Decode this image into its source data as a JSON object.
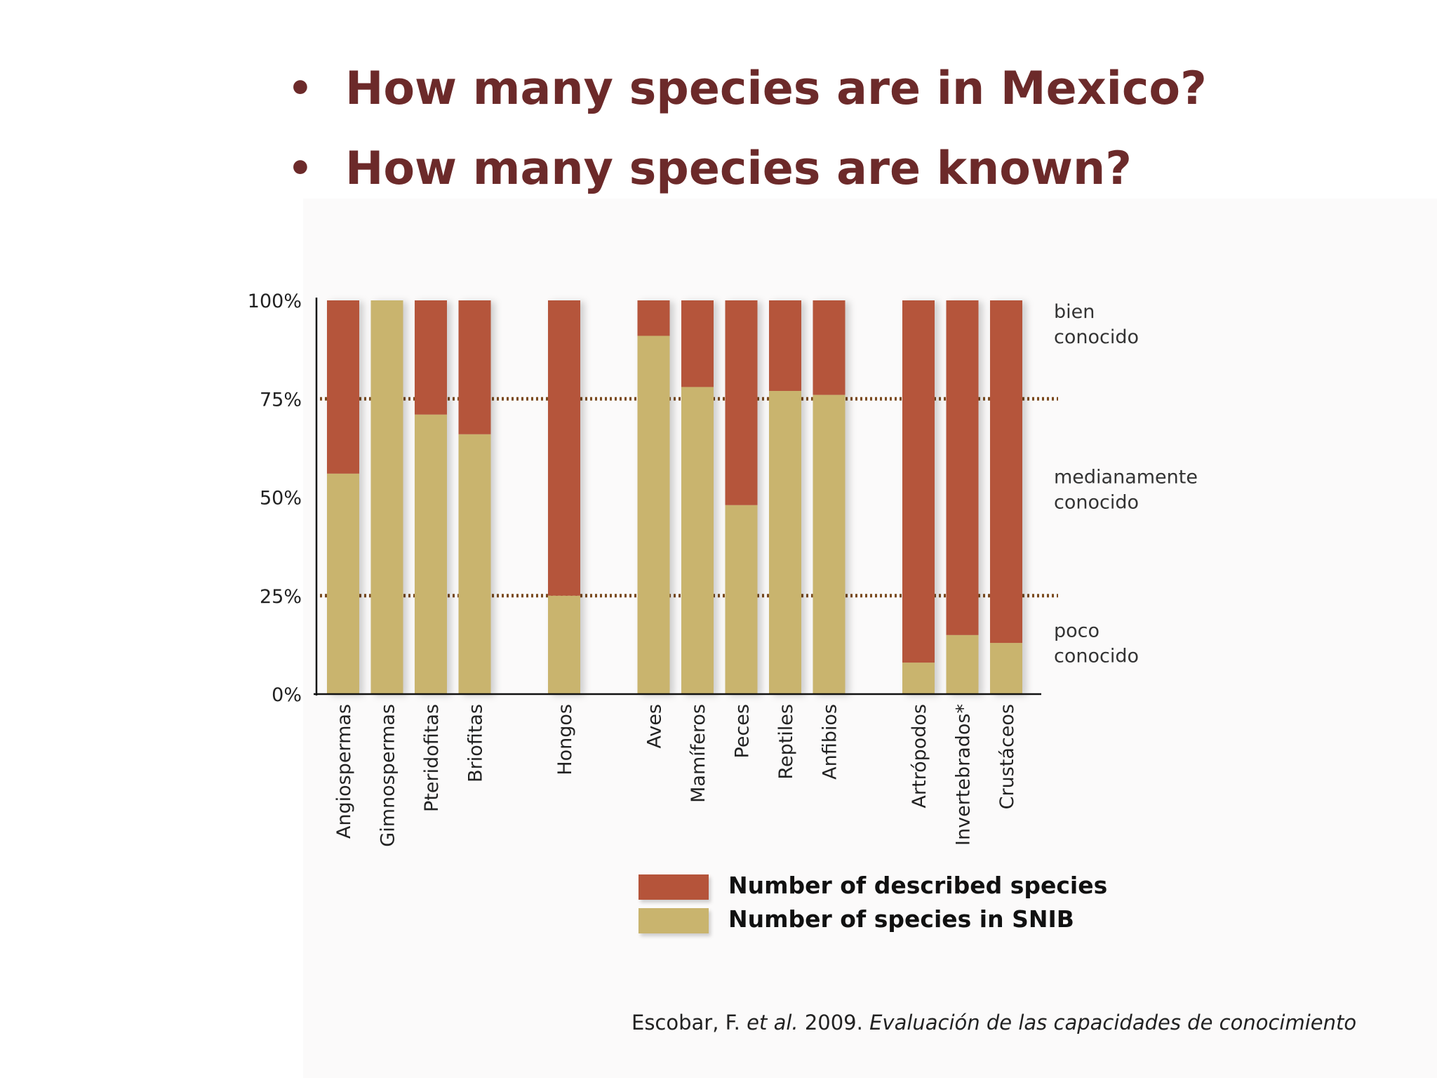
{
  "slide": {
    "bullets": [
      "How many species are in Mexico?",
      "How many species are known?"
    ],
    "bullet_glyph": "•",
    "citation": {
      "author": "Escobar, F.",
      "et": "et",
      "al": "al.",
      "year": "2009.",
      "work": "Evaluación de las capacidades de conocimiento"
    }
  },
  "chart_data": {
    "type": "bar",
    "stacked": true,
    "title": "",
    "xlabel": "",
    "ylabel": "",
    "ylim": [
      0,
      100
    ],
    "y_ticks": [
      "0%",
      "25%",
      "50%",
      "75%",
      "100%"
    ],
    "y_tick_values": [
      0,
      25,
      50,
      75,
      100
    ],
    "reference_lines": [
      25,
      75
    ],
    "categories": [
      "Angiospermas",
      "Gimnospermas",
      "Pteridofitas",
      "Briofitas",
      "Hongos",
      "Aves",
      "Mamíferos",
      "Peces",
      "Reptiles",
      "Anfibios",
      "Artrópodos",
      "Invertebrados*",
      "Crustáceos"
    ],
    "groups": [
      [
        0,
        1,
        2,
        3
      ],
      [
        4
      ],
      [
        5,
        6,
        7,
        8,
        9
      ],
      [
        10,
        11,
        12
      ]
    ],
    "series": [
      {
        "name": "Number of species in SNIB",
        "color": "#c9b46e",
        "values": [
          56,
          100,
          71,
          66,
          25,
          91,
          78,
          48,
          77,
          76,
          8,
          15,
          13
        ]
      },
      {
        "name": "Number of described species",
        "color": "#b5543a",
        "values": [
          44,
          0,
          29,
          34,
          75,
          9,
          22,
          52,
          23,
          24,
          92,
          85,
          87
        ]
      }
    ],
    "zone_labels": [
      {
        "lines": [
          "bien",
          "conocido"
        ],
        "level": 92
      },
      {
        "lines": [
          "medianamente",
          "conocido"
        ],
        "level": 50
      },
      {
        "lines": [
          "poco",
          "conocido"
        ],
        "level": 11
      }
    ],
    "legend": [
      {
        "label": "Number of described species",
        "color": "#b5543a"
      },
      {
        "label": "Number of species in SNIB",
        "color": "#c9b46e"
      }
    ],
    "legend_position": "bottom-right",
    "grid": false
  }
}
